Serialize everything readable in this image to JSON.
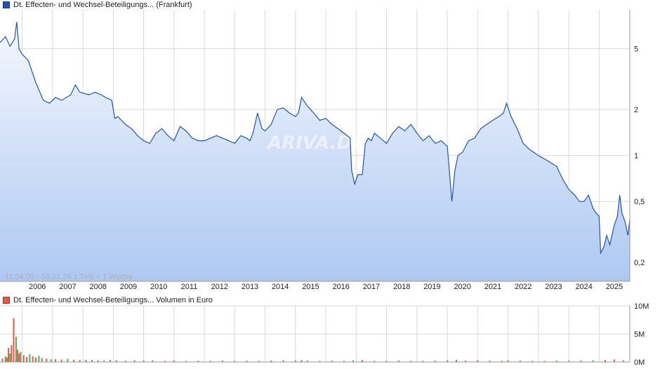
{
  "legend": {
    "price_label": "Dt. Effecten- und Wechsel-Beteiligungs... (Frankfurt)",
    "volume_label": "Dt. Effecten- und Wechsel-Beteiligungs... Volumen in Euro"
  },
  "info_text": "11.04.05 - 03.01.26   1 Tick = 1 Woche",
  "watermark": "ARIVA.DE",
  "colors": {
    "price_line": "#2255aa",
    "area_top": "#f4f8fe",
    "area_bottom": "#aec8f2",
    "grid": "#d8d8d8",
    "volume_up": "#5aa55a",
    "volume_down": "#e05a4a"
  },
  "chart_data": [
    {
      "type": "line",
      "scale": "log",
      "xlim": [
        2005.27,
        2026.01
      ],
      "ylim": [
        0.15,
        9.0
      ],
      "grid": true,
      "y_ticks": [
        0.2,
        0.5,
        1,
        2,
        5
      ],
      "x_ticks": [
        "2006",
        "2007",
        "2008",
        "2009",
        "2010",
        "2011",
        "2012",
        "2013",
        "2014",
        "2015",
        "2016",
        "2017",
        "2018",
        "2019",
        "2020",
        "2021",
        "2022",
        "2023",
        "2024",
        "2025"
      ],
      "series": [
        {
          "x": [
            2005.27,
            2005.45,
            2005.6,
            2005.75,
            2005.82,
            2005.9,
            2006.0,
            2006.2,
            2006.45,
            2006.7,
            2006.9,
            2007.1,
            2007.3,
            2007.6,
            2007.75,
            2007.9,
            2008.2,
            2008.4,
            2008.6,
            2008.75,
            2008.95,
            2009.05,
            2009.15,
            2009.4,
            2009.6,
            2009.8,
            2010.0,
            2010.2,
            2010.4,
            2010.6,
            2010.8,
            2011.0,
            2011.2,
            2011.4,
            2011.6,
            2011.8,
            2012.0,
            2012.2,
            2012.4,
            2012.6,
            2012.8,
            2013.0,
            2013.2,
            2013.4,
            2013.5,
            2013.6,
            2013.75,
            2013.9,
            2014.0,
            2014.2,
            2014.4,
            2014.6,
            2014.8,
            2015.0,
            2015.1,
            2015.2,
            2015.4,
            2015.6,
            2015.8,
            2016.0,
            2016.2,
            2016.4,
            2016.6,
            2016.8,
            2016.85,
            2016.95,
            2017.05,
            2017.2,
            2017.3,
            2017.4,
            2017.5,
            2017.6,
            2017.8,
            2018.0,
            2018.2,
            2018.4,
            2018.6,
            2018.8,
            2019.0,
            2019.2,
            2019.4,
            2019.6,
            2019.8,
            2020.0,
            2020.15,
            2020.25,
            2020.35,
            2020.5,
            2020.7,
            2020.9,
            2021.1,
            2021.3,
            2021.5,
            2021.7,
            2021.85,
            2021.95,
            2022.1,
            2022.3,
            2022.5,
            2022.7,
            2022.85,
            2023.0,
            2023.2,
            2023.4,
            2023.6,
            2023.8,
            2024.0,
            2024.2,
            2024.35,
            2024.5,
            2024.65,
            2024.8,
            2024.9,
            2025.0,
            2025.05,
            2025.15,
            2025.25,
            2025.35,
            2025.5,
            2025.6,
            2025.68,
            2025.75,
            2025.85,
            2025.95,
            2026.01
          ],
          "y": [
            5.5,
            6.0,
            5.2,
            5.8,
            7.5,
            5.0,
            4.6,
            4.2,
            3.0,
            2.3,
            2.2,
            2.4,
            2.3,
            2.5,
            2.9,
            2.6,
            2.5,
            2.6,
            2.5,
            2.4,
            2.3,
            1.75,
            1.8,
            1.6,
            1.5,
            1.35,
            1.25,
            1.2,
            1.4,
            1.5,
            1.35,
            1.25,
            1.55,
            1.45,
            1.3,
            1.25,
            1.25,
            1.3,
            1.35,
            1.3,
            1.25,
            1.2,
            1.35,
            1.3,
            1.25,
            1.4,
            1.9,
            1.5,
            1.45,
            1.6,
            2.0,
            2.05,
            1.9,
            1.8,
            1.9,
            2.4,
            2.1,
            1.9,
            1.7,
            1.75,
            1.6,
            1.5,
            1.4,
            1.3,
            0.8,
            0.65,
            0.75,
            0.75,
            1.2,
            1.3,
            1.25,
            1.4,
            1.3,
            1.2,
            1.4,
            1.55,
            1.45,
            1.6,
            1.4,
            1.25,
            1.35,
            1.2,
            1.25,
            1.15,
            0.5,
            0.8,
            1.0,
            1.05,
            1.25,
            1.3,
            1.5,
            1.6,
            1.7,
            1.8,
            1.9,
            2.2,
            1.8,
            1.5,
            1.2,
            1.1,
            1.05,
            1.0,
            0.95,
            0.9,
            0.85,
            0.7,
            0.6,
            0.55,
            0.5,
            0.5,
            0.55,
            0.45,
            0.42,
            0.4,
            0.23,
            0.25,
            0.3,
            0.26,
            0.35,
            0.4,
            0.55,
            0.42,
            0.37,
            0.3,
            0.38
          ]
        }
      ]
    },
    {
      "type": "bar",
      "ylim": [
        0,
        10
      ],
      "y_ticks": [
        "0M",
        "5M",
        "10M"
      ],
      "series": [
        {
          "x": [
            2005.35,
            2005.45,
            2005.5,
            2005.55,
            2005.6,
            2005.65,
            2005.72,
            2005.8,
            2005.85,
            2005.9,
            2005.95,
            2006.05,
            2006.15,
            2006.25,
            2006.35,
            2006.45,
            2006.55,
            2006.65,
            2006.8,
            2006.95,
            2007.1,
            2007.3,
            2007.5,
            2007.7,
            2007.9,
            2008.1,
            2008.3,
            2008.5,
            2008.7,
            2008.9,
            2009.1,
            2009.4,
            2009.7,
            2010.0,
            2010.3,
            2010.7,
            2011.0,
            2011.4,
            2011.8,
            2012.2,
            2012.6,
            2013.0,
            2013.4,
            2013.8,
            2014.2,
            2014.6,
            2015.0,
            2015.2,
            2015.4,
            2015.8,
            2016.2,
            2016.6,
            2016.9,
            2017.2,
            2017.6,
            2018.0,
            2018.4,
            2018.8,
            2019.2,
            2019.6,
            2020.0,
            2020.3,
            2020.6,
            2021.0,
            2021.4,
            2021.8,
            2022.0,
            2022.4,
            2022.8,
            2023.2,
            2023.6,
            2024.0,
            2024.4,
            2024.8,
            2025.2,
            2025.5,
            2025.8
          ],
          "values": [
            0.6,
            1.0,
            0.8,
            2.5,
            1.5,
            3.0,
            7.8,
            4.5,
            2.2,
            1.5,
            1.8,
            1.2,
            0.9,
            1.4,
            1.0,
            0.8,
            1.1,
            0.7,
            0.6,
            0.5,
            0.5,
            0.45,
            0.55,
            0.4,
            0.35,
            0.4,
            0.35,
            0.3,
            0.3,
            0.35,
            0.3,
            0.25,
            0.3,
            0.25,
            0.3,
            0.2,
            0.25,
            0.2,
            0.22,
            0.2,
            0.25,
            0.2,
            0.22,
            0.2,
            0.25,
            0.3,
            0.3,
            0.35,
            0.25,
            0.2,
            0.25,
            0.2,
            0.3,
            0.35,
            0.2,
            0.2,
            0.25,
            0.2,
            0.2,
            0.22,
            0.3,
            0.4,
            0.25,
            0.3,
            0.25,
            0.2,
            0.3,
            0.25,
            0.2,
            0.2,
            0.25,
            0.22,
            0.25,
            0.3,
            0.35,
            0.45,
            0.3
          ]
        }
      ]
    }
  ]
}
